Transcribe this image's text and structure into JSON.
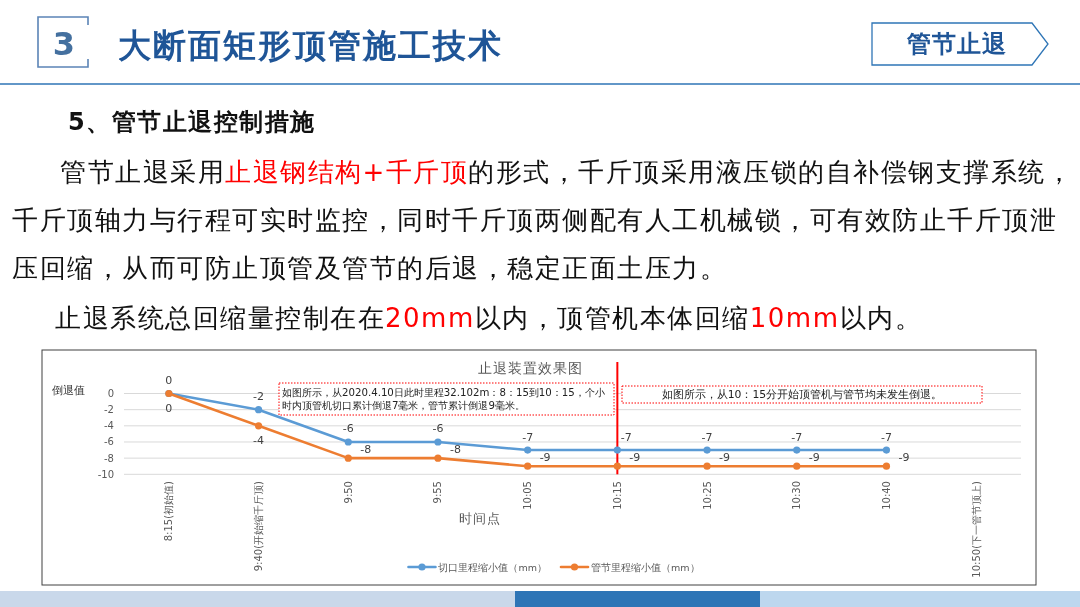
{
  "chart_data": {
    "type": "line",
    "title": "止退装置效果图",
    "xlabel": "时间点",
    "ylabel": "倒退值",
    "categories": [
      "8:15(初始值)",
      "9:40(开始缩千斤顶)",
      "9:50",
      "9:55",
      "10:05",
      "10:15",
      "10:25",
      "10:30",
      "10:40",
      "10:50(下一管节顶上)"
    ],
    "series": [
      {
        "name": "切口里程缩小值（mm）",
        "color": "#5b9bd5",
        "values": [
          0,
          -2,
          -6,
          -6,
          -7,
          -7,
          -7,
          -7,
          -7,
          null
        ]
      },
      {
        "name": "管节里程缩小值（mm）",
        "color": "#ed7d31",
        "values": [
          0,
          -4,
          -8,
          -8,
          -9,
          -9,
          -9,
          -9,
          -9,
          null
        ]
      }
    ],
    "ylim": [
      -10,
      0
    ],
    "yticks": [
      -10,
      -8,
      -6,
      -4,
      -2,
      0
    ],
    "grid": "y",
    "legend": "bottom",
    "marker": "circle",
    "line_style": "solid",
    "data_labels": true,
    "ref_lines": [
      {
        "axis": "x",
        "value": "10:15",
        "color": "#ff0000"
      }
    ],
    "annotations": [
      "3",
      "大断面矩形顶管施工技术",
      "管节止退",
      "5、管节止退控制措施",
      "管节止退采用",
      "止退钢结构+千斤顶",
      "的形式，千斤顶采用液压锁的自补偿钢支撑系统，",
      "千斤顶轴力与行程可实时监控，同时千斤顶两侧配有人工机械锁，可有效防止千斤顶泄",
      "压回缩，从而可防止顶管及管节的后退，稳定正面土压力。",
      "止退系统总回缩量控制在在",
      "20mm",
      "以内，顶管机本体回缩",
      "10mm",
      "以内。",
      "如图所示，从2020.4.10日此时里程32.102m：8：15到10：15，个小时内顶管机切口累计倒退7毫米，管节累计倒退9毫米。",
      "如图所示，从10：15分开始顶管机与管节均未发生倒退。"
    ]
  }
}
